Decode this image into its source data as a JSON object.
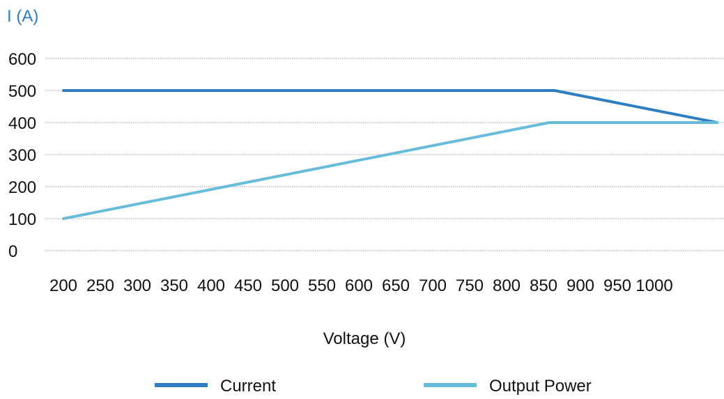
{
  "chart_data": {
    "type": "line",
    "ylabel": "I (A)",
    "xlabel": "Voltage (V)",
    "yticks": [
      "600",
      "500",
      "400",
      "300",
      "200",
      "100",
      "0"
    ],
    "ylim": [
      0,
      600
    ],
    "xticks": [
      "200",
      "250",
      "300",
      "350",
      "400",
      "450",
      "500",
      "550",
      "600",
      "650",
      "700",
      "750",
      "800",
      "850",
      "900",
      "950",
      "1000"
    ],
    "xlim": [
      200,
      1000
    ],
    "grid": true,
    "legend_position": "bottom",
    "series": [
      {
        "name": "Current",
        "color": "#2e7fc1",
        "x": [
          200,
          865,
          1085
        ],
        "y": [
          500,
          500,
          400
        ]
      },
      {
        "name": "Output Power",
        "color": "#66bcd9",
        "x": [
          200,
          858,
          1085
        ],
        "y": [
          100,
          400,
          400
        ]
      }
    ],
    "ylabel_color": "#2e7fc1",
    "grid_color": "#9a9a9a"
  }
}
